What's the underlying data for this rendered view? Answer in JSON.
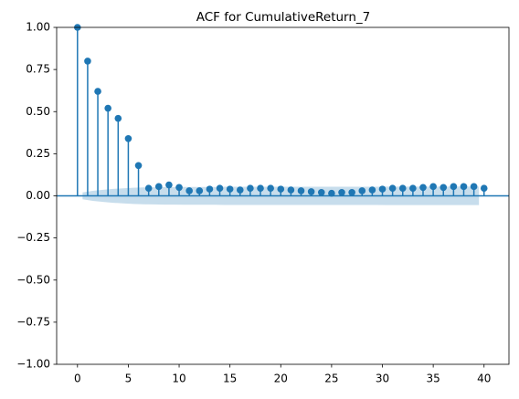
{
  "chart_data": {
    "type": "stem",
    "title": "ACF for CumulativeReturn_7",
    "x": [
      0,
      1,
      2,
      3,
      4,
      5,
      6,
      7,
      8,
      9,
      10,
      11,
      12,
      13,
      14,
      15,
      16,
      17,
      18,
      19,
      20,
      21,
      22,
      23,
      24,
      25,
      26,
      27,
      28,
      29,
      30,
      31,
      32,
      33,
      34,
      35,
      36,
      37,
      38,
      39,
      40
    ],
    "values": [
      1,
      0.8,
      0.62,
      0.52,
      0.46,
      0.34,
      0.18,
      0.045,
      0.055,
      0.065,
      0.05,
      0.03,
      0.03,
      0.04,
      0.045,
      0.04,
      0.035,
      0.045,
      0.045,
      0.045,
      0.04,
      0.035,
      0.03,
      0.025,
      0.02,
      0.015,
      0.02,
      0.02,
      0.03,
      0.035,
      0.04,
      0.045,
      0.045,
      0.045,
      0.05,
      0.055,
      0.05,
      0.055,
      0.055,
      0.055,
      0.045
    ],
    "color": "#1f77b4",
    "band": {
      "x": [
        1,
        2,
        3,
        4,
        5,
        6,
        7,
        8,
        9,
        10,
        11,
        12,
        13,
        14,
        15,
        16,
        17,
        18,
        19,
        20,
        21,
        22,
        23,
        24,
        25,
        26,
        27,
        28,
        29,
        30,
        31,
        32,
        33,
        34,
        35,
        36,
        37,
        38,
        39,
        40
      ],
      "values": [
        0.02,
        0.03,
        0.036,
        0.041,
        0.045,
        0.048,
        0.05,
        0.051,
        0.052,
        0.052,
        0.053,
        0.053,
        0.053,
        0.053,
        0.054,
        0.054,
        0.054,
        0.054,
        0.054,
        0.054,
        0.054,
        0.054,
        0.054,
        0.054,
        0.054,
        0.054,
        0.054,
        0.054,
        0.054,
        0.054,
        0.055,
        0.055,
        0.055,
        0.055,
        0.055,
        0.055,
        0.055,
        0.055,
        0.055,
        0.055
      ]
    },
    "xlim": [
      -2.05,
      42.45
    ],
    "xticks": [
      0,
      5,
      10,
      15,
      20,
      25,
      30,
      35,
      40
    ],
    "ylim": [
      -1,
      1
    ],
    "yticks": [
      {
        "value": -1,
        "label": "−1.00"
      },
      {
        "value": -0.75,
        "label": "−0.75"
      },
      {
        "value": -0.5,
        "label": "−0.50"
      },
      {
        "value": -0.25,
        "label": "−0.25"
      },
      {
        "value": 0,
        "label": "0.00"
      },
      {
        "value": 0.25,
        "label": "0.25"
      },
      {
        "value": 0.5,
        "label": "0.50"
      },
      {
        "value": 0.75,
        "label": "0.75"
      },
      {
        "value": 1,
        "label": "1.00"
      }
    ]
  }
}
